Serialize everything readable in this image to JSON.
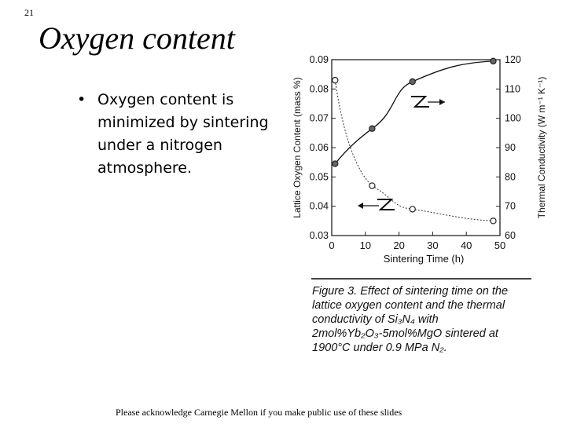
{
  "slide_number": "21",
  "title": "Oxygen content",
  "bullet": "Oxygen content is minimized by sintering under a nitrogen atmosphere.",
  "caption": "Figure 3. Effect of sintering time on the lattice oxygen content and the thermal conductivity of Si₃N₄ with 2mol%Yb₂O₃-5mol%MgO sintered at 1900°C under 0.9 MPa N₂.",
  "footer": "Please acknowledge Carnegie Mellon if you make public use of these slides",
  "chart_data": {
    "type": "scatter",
    "xlabel": "Sintering Time (h)",
    "ylabel_left": "Lattice Oxygen Content (mass %)",
    "ylabel_right": "Thermal Conductivity (W m⁻¹ K⁻¹)",
    "xlim": [
      0,
      50
    ],
    "ylim_left": [
      0.03,
      0.09
    ],
    "ylim_right": [
      60,
      120
    ],
    "x_ticks": [
      "0",
      "10",
      "20",
      "30",
      "40",
      "50"
    ],
    "y_ticks_left": [
      "0.03",
      "0.04",
      "0.05",
      "0.06",
      "0.07",
      "0.08",
      "0.09"
    ],
    "y_ticks_right": [
      "60",
      "70",
      "80",
      "90",
      "100",
      "110",
      "120"
    ],
    "series": [
      {
        "axis": "left",
        "marker": "open-circle",
        "x": [
          1,
          12,
          24,
          48
        ],
        "y": [
          0.083,
          0.047,
          0.039,
          0.035
        ]
      },
      {
        "axis": "right",
        "marker": "filled-circle",
        "x": [
          1,
          12,
          24,
          48
        ],
        "y": [
          84.5,
          96.5,
          112.5,
          119.5
        ]
      }
    ]
  }
}
